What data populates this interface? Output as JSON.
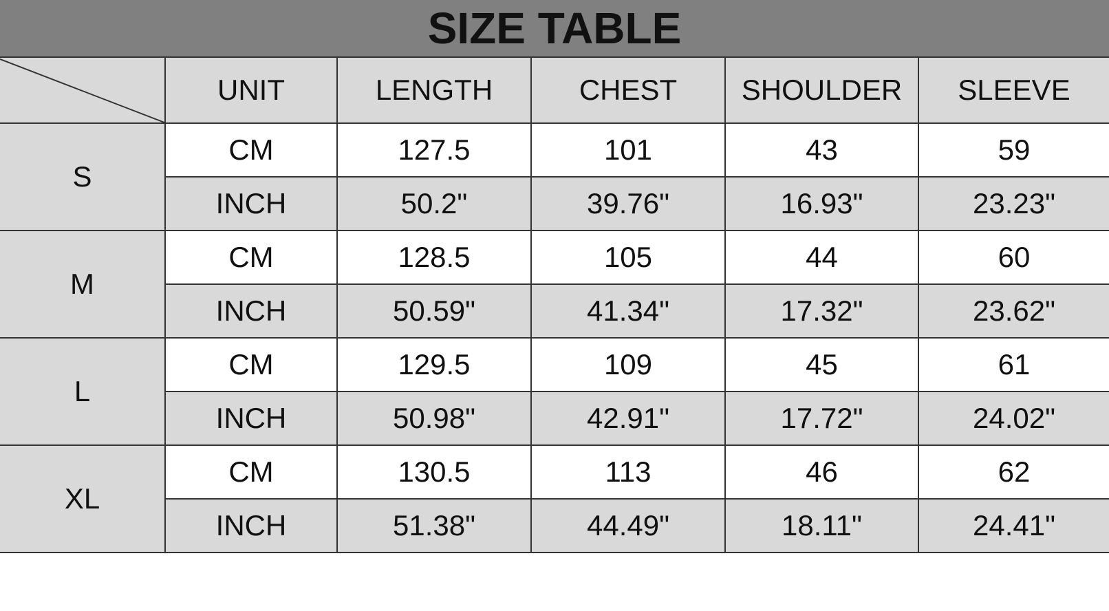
{
  "title": "SIZE TABLE",
  "columns": [
    "UNIT",
    "LENGTH",
    "CHEST",
    "SHOULDER",
    "SLEEVE"
  ],
  "rows": [
    {
      "size": "S",
      "cm": [
        "CM",
        "127.5",
        "101",
        "43",
        "59"
      ],
      "inch": [
        "INCH",
        "50.2\"",
        "39.76\"",
        "16.93\"",
        "23.23\""
      ]
    },
    {
      "size": "M",
      "cm": [
        "CM",
        "128.5",
        "105",
        "44",
        "60"
      ],
      "inch": [
        "INCH",
        "50.59\"",
        "41.34\"",
        "17.32\"",
        "23.62\""
      ]
    },
    {
      "size": "L",
      "cm": [
        "CM",
        "129.5",
        "109",
        "45",
        "61"
      ],
      "inch": [
        "INCH",
        "50.98\"",
        "42.91\"",
        "17.72\"",
        "24.02\""
      ]
    },
    {
      "size": "XL",
      "cm": [
        "CM",
        "130.5",
        "113",
        "46",
        "62"
      ],
      "inch": [
        "INCH",
        "51.38\"",
        "44.49\"",
        "18.11\"",
        "24.41\""
      ]
    }
  ],
  "colors": {
    "title_bg": "#808080",
    "header_bg": "#d9d9d9",
    "inch_row_bg": "#d9d9d9",
    "cm_row_bg": "#ffffff"
  }
}
